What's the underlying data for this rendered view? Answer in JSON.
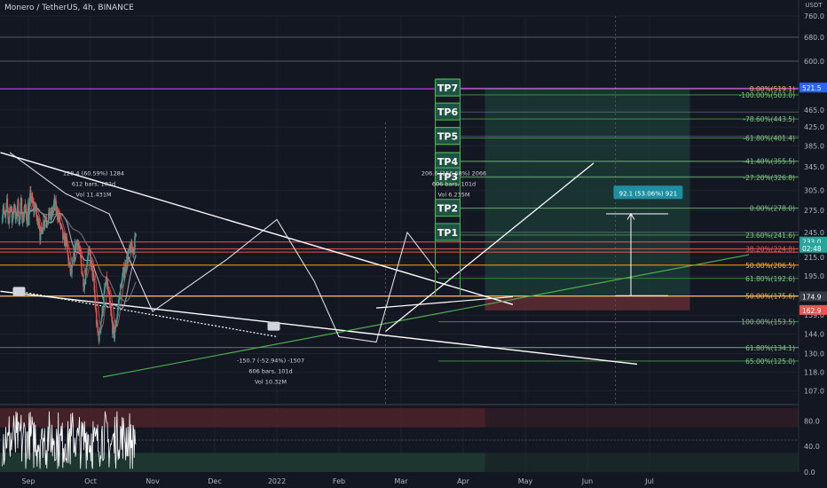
{
  "header": {
    "symbol": "Monero / TetherUS, 4h, BINANCE",
    "currency": "USDT"
  },
  "colors": {
    "bg": "#131722",
    "grid": "#1e2230",
    "up": "#26a69a",
    "down": "#ef5350",
    "fib": "#4caf50",
    "tp_label_bg": "#1e5245",
    "tp_border": "#4caf50",
    "tp_line": "#d1d4dc",
    "long_zone": "#1d4a3e",
    "stop_zone": "#5c2a33",
    "pink_line": "#e040fb",
    "red_line": "#ef5350",
    "orange_line": "#ff9800",
    "sma": "#787b86",
    "ema": "#b2b5be",
    "trend": "#ffffff",
    "green_trend": "#4caf50",
    "rsi_line": "#ffffff",
    "rsi_band_red": "#4a2229",
    "rsi_band_green": "#1f3a31",
    "price_tag_green": "#26a69a",
    "price_tag_red": "#ef5350",
    "price_tag_blue": "#2962ff",
    "price_tag_gray": "#363a45"
  },
  "chart_data": {
    "type": "candlestick",
    "timeframe": "4h",
    "x_ticks": [
      "Sep",
      "Oct",
      "Nov",
      "Dec",
      "2022",
      "Feb",
      "Mar",
      "Apr",
      "May",
      "Jun",
      "Jul"
    ],
    "price_axis": {
      "scale": "log",
      "ylim": [
        100,
        760
      ],
      "ticks": [
        107.0,
        118.0,
        130.0,
        144.0,
        159.0,
        175.0,
        195.0,
        215.0,
        245.0,
        275.0,
        305.0,
        345.0,
        385.0,
        425.0,
        465.0,
        600.0,
        680.0,
        760.0
      ]
    },
    "price_path": [
      {
        "t": 0.0,
        "p": 258
      },
      {
        "t": 0.03,
        "p": 296
      },
      {
        "t": 0.06,
        "p": 288
      },
      {
        "t": 0.09,
        "p": 275
      },
      {
        "t": 0.11,
        "p": 284
      },
      {
        "t": 0.14,
        "p": 259
      },
      {
        "t": 0.17,
        "p": 264
      },
      {
        "t": 0.19,
        "p": 238
      },
      {
        "t": 0.21,
        "p": 246
      },
      {
        "t": 0.24,
        "p": 258
      },
      {
        "t": 0.27,
        "p": 266
      },
      {
        "t": 0.3,
        "p": 261
      },
      {
        "t": 0.33,
        "p": 270
      },
      {
        "t": 0.36,
        "p": 264
      },
      {
        "t": 0.39,
        "p": 274
      },
      {
        "t": 0.42,
        "p": 286
      },
      {
        "t": 0.45,
        "p": 276
      },
      {
        "t": 0.48,
        "p": 268
      },
      {
        "t": 0.51,
        "p": 256
      },
      {
        "t": 0.54,
        "p": 244
      },
      {
        "t": 0.57,
        "p": 232
      },
      {
        "t": 0.6,
        "p": 238
      },
      {
        "t": 0.63,
        "p": 218
      },
      {
        "t": 0.66,
        "p": 205
      },
      {
        "t": 0.69,
        "p": 196
      },
      {
        "t": 0.72,
        "p": 208
      },
      {
        "t": 0.75,
        "p": 226
      },
      {
        "t": 0.78,
        "p": 237
      },
      {
        "t": 0.81,
        "p": 225
      },
      {
        "t": 0.84,
        "p": 212
      },
      {
        "t": 0.87,
        "p": 196
      },
      {
        "t": 0.9,
        "p": 186
      },
      {
        "t": 0.93,
        "p": 204
      },
      {
        "t": 0.96,
        "p": 222
      },
      {
        "t": 0.99,
        "p": 215
      },
      {
        "t": 1.02,
        "p": 205
      },
      {
        "t": 1.05,
        "p": 188
      },
      {
        "t": 1.08,
        "p": 165
      },
      {
        "t": 1.11,
        "p": 145
      },
      {
        "t": 1.14,
        "p": 142
      },
      {
        "t": 1.17,
        "p": 155
      },
      {
        "t": 1.2,
        "p": 166
      },
      {
        "t": 1.23,
        "p": 182
      },
      {
        "t": 1.26,
        "p": 190
      },
      {
        "t": 1.29,
        "p": 176
      },
      {
        "t": 1.32,
        "p": 163
      },
      {
        "t": 1.35,
        "p": 150
      },
      {
        "t": 1.38,
        "p": 143
      },
      {
        "t": 1.41,
        "p": 152
      },
      {
        "t": 1.44,
        "p": 164
      },
      {
        "t": 1.47,
        "p": 178
      },
      {
        "t": 1.5,
        "p": 188
      },
      {
        "t": 1.53,
        "p": 198
      },
      {
        "t": 1.56,
        "p": 206
      },
      {
        "t": 1.59,
        "p": 214
      },
      {
        "t": 1.62,
        "p": 220
      },
      {
        "t": 1.65,
        "p": 226
      },
      {
        "t": 1.68,
        "p": 222
      },
      {
        "t": 1.71,
        "p": 233
      },
      {
        "t": 1.73,
        "p": 241
      },
      {
        "t": 1.74,
        "p": 233
      }
    ],
    "fib_levels": [
      {
        "label": "0.00%(519.1)",
        "price": 519.1
      },
      {
        "label": "-100.00%(503.0)",
        "price": 503.0
      },
      {
        "label": "-78.60%(443.5)",
        "price": 443.5
      },
      {
        "label": "-61.80%(401.4)",
        "price": 401.4
      },
      {
        "label": "-41.40%(355.5)",
        "price": 355.5
      },
      {
        "label": "-27.20%(326.8)",
        "price": 326.8
      },
      {
        "label": "0.00%(278.0)",
        "price": 278.0
      },
      {
        "label": "23.60%(241.6)",
        "price": 241.6
      },
      {
        "label": "38.20%(224.8)",
        "price": 224.8
      },
      {
        "label": "50.00%(206.5)",
        "price": 206.5
      },
      {
        "label": "61.80%(192.6)",
        "price": 192.6
      },
      {
        "label": "50.00%(175.6)",
        "price": 175.6
      },
      {
        "label": "100.00%(153.5)",
        "price": 153.5
      },
      {
        "label": "61.80%(134.1)",
        "price": 134.1
      },
      {
        "label": "65.00%(125.0)",
        "price": 125.0
      }
    ],
    "take_profits": [
      {
        "label": "TP7",
        "price": 521.5
      },
      {
        "label": "TP6",
        "price": 460
      },
      {
        "label": "TP5",
        "price": 405
      },
      {
        "label": "TP4",
        "price": 355
      },
      {
        "label": "TP3",
        "price": 328
      },
      {
        "label": "TP2",
        "price": 278
      },
      {
        "label": "TP1",
        "price": 245
      }
    ],
    "price_tags": [
      {
        "text": "521.5",
        "price": 521.5,
        "color": "#2962ff"
      },
      {
        "text": "233.0",
        "price": 233.0,
        "color": "#26a69a"
      },
      {
        "text": "02:48",
        "price": 225.5,
        "color": "#26a69a"
      },
      {
        "text": "174.9",
        "price": 174.9,
        "color": "#363a45"
      },
      {
        "text": "162.9",
        "price": 162.9,
        "color": "#ef5350"
      }
    ],
    "annotations": [
      {
        "lines": [
          "128.4 (60.59%) 1284",
          "612 bars, 102d",
          "Vol 11.431M"
        ]
      },
      {
        "lines": [
          "206.6 (156.58%) 2066",
          "606 bars, 101d",
          "Vol 6.235M"
        ]
      },
      {
        "lines": [
          "-150.7 (-52.94%) -1507",
          "606 bars, 101d",
          "Vol 10.32M"
        ]
      },
      {
        "lines": [
          "92.1 (53.06%) 921"
        ]
      }
    ],
    "position": {
      "entry": 174.9,
      "target": 521.5,
      "stop": 162.9
    },
    "rsi": {
      "ylim": [
        0,
        100
      ],
      "ticks": [
        "80.0",
        "40.0",
        "0.0"
      ],
      "tick_values": [
        80,
        40,
        0
      ],
      "band_upper": [
        70,
        100
      ],
      "band_lower": [
        0,
        30
      ]
    }
  }
}
